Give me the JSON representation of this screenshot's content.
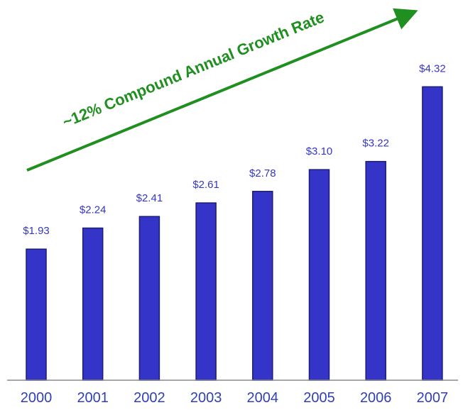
{
  "chart_data": {
    "type": "bar",
    "categories": [
      "2000",
      "2001",
      "2002",
      "2003",
      "2004",
      "2005",
      "2006",
      "2007"
    ],
    "values": [
      1.93,
      2.24,
      2.41,
      2.61,
      2.78,
      3.1,
      3.22,
      4.32
    ],
    "value_labels": [
      "$1.93",
      "$2.24",
      "$2.41",
      "$2.61",
      "$2.78",
      "$3.10",
      "$3.22",
      "$4.32"
    ],
    "title": "",
    "xlabel": "",
    "ylabel": "",
    "ylim": [
      0,
      4.95
    ],
    "grid": false,
    "annotation": "~12% Compound Annual Growth Rate",
    "colors": {
      "bar": "#3434c8",
      "bar_edge": "#1d1d73",
      "value_label": "#3636c4",
      "tick_label": "#2f3fb8",
      "annotation": "#1f8f1f",
      "axis": "#8a8a8a"
    }
  }
}
